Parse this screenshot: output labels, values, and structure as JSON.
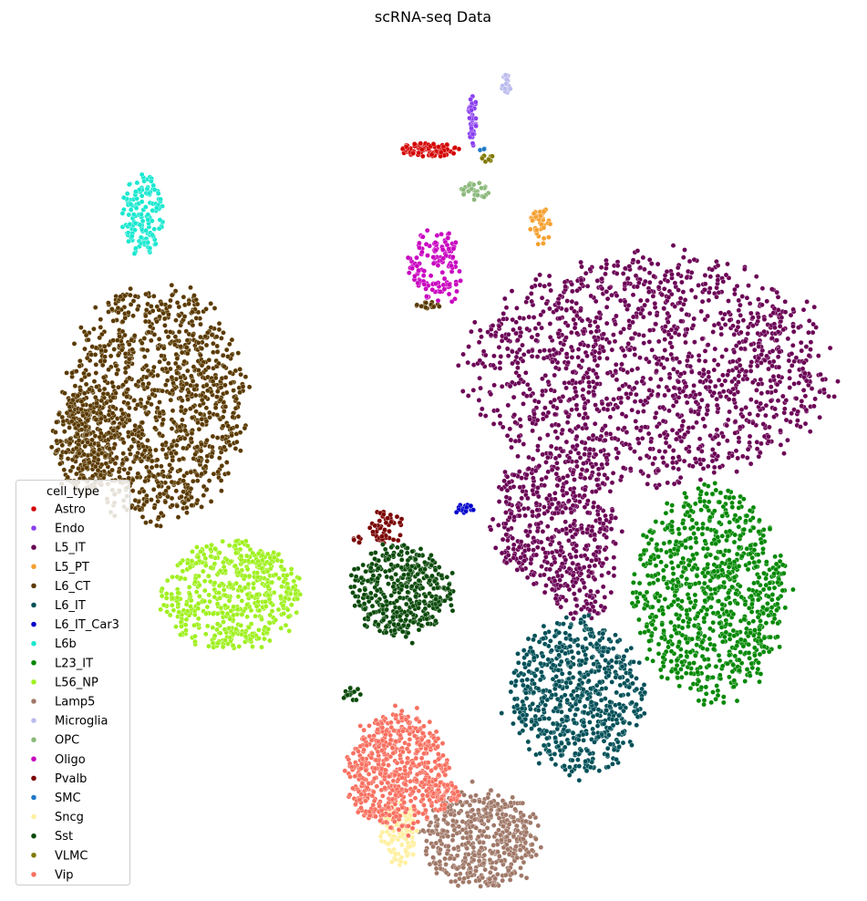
{
  "chart_data": {
    "type": "scatter",
    "title": "scRNA-seq Data",
    "xlabel": "",
    "ylabel": "",
    "axes_visible": false,
    "grid": false,
    "legend_title": "cell_type",
    "legend_position": "lower-left",
    "xlim": [
      -1.0,
      11.0
    ],
    "ylim": [
      -1.0,
      10.5
    ],
    "series": [
      {
        "name": "Astro",
        "color": "#d40000",
        "clusters": [
          {
            "cx": 4.93,
            "cy": 8.97,
            "rx": 0.42,
            "ry": 0.09,
            "n": 90
          }
        ]
      },
      {
        "name": "Endo",
        "color": "#8a3ff0",
        "clusters": [
          {
            "cx": 5.55,
            "cy": 9.38,
            "rx": 0.06,
            "ry": 0.32,
            "n": 40
          }
        ]
      },
      {
        "name": "L5_IT",
        "color": "#6a0055",
        "clusters": [
          {
            "cx": 8.05,
            "cy": 6.0,
            "rx": 2.5,
            "ry": 1.5,
            "n": 1500
          },
          {
            "cx": 6.72,
            "cy": 3.95,
            "rx": 0.92,
            "ry": 0.9,
            "n": 450
          },
          {
            "cx": 7.12,
            "cy": 3.1,
            "rx": 0.45,
            "ry": 0.45,
            "n": 90
          }
        ]
      },
      {
        "name": "L5_PT",
        "color": "#f5a030",
        "clusters": [
          {
            "cx": 6.51,
            "cy": 7.97,
            "rx": 0.15,
            "ry": 0.28,
            "n": 40
          }
        ]
      },
      {
        "name": "L6_CT",
        "color": "#5a3a00",
        "clusters": [
          {
            "cx": 1.05,
            "cy": 5.55,
            "rx": 1.25,
            "ry": 1.55,
            "n": 1200
          },
          {
            "cx": 0.05,
            "cy": 5.05,
            "rx": 0.45,
            "ry": 0.72,
            "n": 250
          },
          {
            "cx": 4.92,
            "cy": 6.88,
            "rx": 0.18,
            "ry": 0.05,
            "n": 15
          }
        ]
      },
      {
        "name": "L6_IT",
        "color": "#005058",
        "clusters": [
          {
            "cx": 7.01,
            "cy": 1.58,
            "rx": 0.92,
            "ry": 1.05,
            "n": 700
          }
        ]
      },
      {
        "name": "L6_IT_Car3",
        "color": "#0000cc",
        "clusters": [
          {
            "cx": 5.44,
            "cy": 4.12,
            "rx": 0.13,
            "ry": 0.07,
            "n": 15
          }
        ]
      },
      {
        "name": "L6b",
        "color": "#1ae8d0",
        "clusters": [
          {
            "cx": 0.87,
            "cy": 8.1,
            "rx": 0.3,
            "ry": 0.55,
            "n": 150
          }
        ]
      },
      {
        "name": "L23_IT",
        "color": "#008800",
        "clusters": [
          {
            "cx": 8.91,
            "cy": 2.99,
            "rx": 1.05,
            "ry": 1.4,
            "n": 900
          }
        ]
      },
      {
        "name": "L56_NP",
        "color": "#a0f020",
        "clusters": [
          {
            "cx": 2.13,
            "cy": 2.97,
            "rx": 0.95,
            "ry": 0.72,
            "n": 550
          }
        ]
      },
      {
        "name": "Lamp5",
        "color": "#a07868",
        "clusters": [
          {
            "cx": 5.65,
            "cy": -0.32,
            "rx": 0.82,
            "ry": 0.65,
            "n": 500
          }
        ]
      },
      {
        "name": "Microglia",
        "color": "#bbbbee",
        "clusters": [
          {
            "cx": 6.02,
            "cy": 9.86,
            "rx": 0.06,
            "ry": 0.14,
            "n": 20
          }
        ]
      },
      {
        "name": "OPC",
        "color": "#8ab87a",
        "clusters": [
          {
            "cx": 5.56,
            "cy": 8.4,
            "rx": 0.22,
            "ry": 0.12,
            "n": 30
          }
        ]
      },
      {
        "name": "Oligo",
        "color": "#c800c0",
        "clusters": [
          {
            "cx": 5.04,
            "cy": 7.4,
            "rx": 0.38,
            "ry": 0.48,
            "n": 140
          }
        ]
      },
      {
        "name": "Pvalb",
        "color": "#7a0000",
        "clusters": [
          {
            "cx": 4.34,
            "cy": 3.88,
            "rx": 0.25,
            "ry": 0.22,
            "n": 50
          },
          {
            "cx": 3.9,
            "cy": 3.71,
            "rx": 0.1,
            "ry": 0.05,
            "n": 8
          }
        ]
      },
      {
        "name": "SMC",
        "color": "#1f78c8",
        "clusters": [
          {
            "cx": 5.68,
            "cy": 8.99,
            "rx": 0.04,
            "ry": 0.03,
            "n": 3
          }
        ]
      },
      {
        "name": "Sncg",
        "color": "#fff0a0",
        "clusters": [
          {
            "cx": 4.52,
            "cy": -0.22,
            "rx": 0.28,
            "ry": 0.42,
            "n": 120
          }
        ]
      },
      {
        "name": "Sst",
        "color": "#0a4a0a",
        "clusters": [
          {
            "cx": 4.53,
            "cy": 3.02,
            "rx": 0.72,
            "ry": 0.62,
            "n": 420
          },
          {
            "cx": 3.85,
            "cy": 1.65,
            "rx": 0.18,
            "ry": 0.1,
            "n": 15
          }
        ]
      },
      {
        "name": "VLMC",
        "color": "#807800",
        "clusters": [
          {
            "cx": 5.77,
            "cy": 8.86,
            "rx": 0.1,
            "ry": 0.05,
            "n": 10
          }
        ]
      },
      {
        "name": "Vip",
        "color": "#f87060",
        "clusters": [
          {
            "cx": 4.47,
            "cy": 0.6,
            "rx": 0.72,
            "ry": 0.78,
            "n": 600
          },
          {
            "cx": 5.16,
            "cy": 0.25,
            "rx": 0.2,
            "ry": 0.2,
            "n": 40
          }
        ]
      }
    ]
  }
}
